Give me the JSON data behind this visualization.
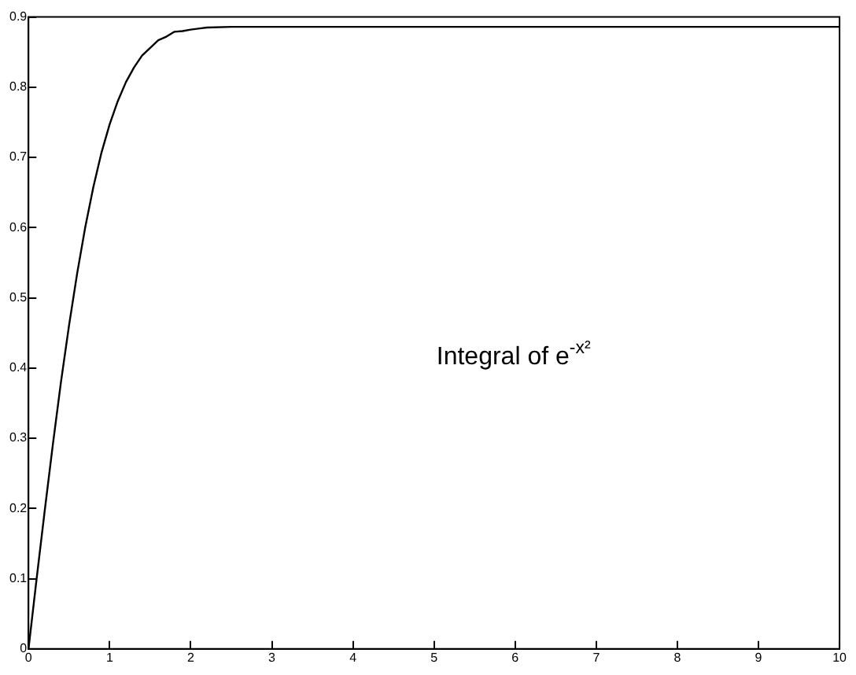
{
  "chart_data": {
    "type": "line",
    "x": [
      0,
      0.1,
      0.2,
      0.3,
      0.4,
      0.5,
      0.6,
      0.7,
      0.8,
      0.9,
      1.0,
      1.1,
      1.2,
      1.3,
      1.4,
      1.5,
      1.6,
      1.7,
      1.8,
      1.9,
      2.0,
      2.2,
      2.5,
      3,
      4,
      6,
      8,
      10
    ],
    "series": [
      {
        "color": "#000000",
        "values": [
          0,
          0.1,
          0.197,
          0.291,
          0.38,
          0.461,
          0.535,
          0.601,
          0.658,
          0.707,
          0.747,
          0.78,
          0.807,
          0.828,
          0.845,
          0.856,
          0.867,
          0.872,
          0.879,
          0.88,
          0.882,
          0.885,
          0.886,
          0.886,
          0.886,
          0.886,
          0.886,
          0.886
        ]
      }
    ],
    "xlim": [
      0,
      10
    ],
    "xticks": [
      0,
      1,
      2,
      3,
      4,
      5,
      6,
      7,
      8,
      9,
      10
    ],
    "ylim": [
      0,
      0.9
    ],
    "yticks": [
      0,
      0.1,
      0.2,
      0.3,
      0.4,
      0.5,
      0.6,
      0.7,
      0.8,
      0.9
    ],
    "grid": false,
    "legend": false,
    "marker": "none",
    "line_style": "solid",
    "annotations": [
      "Integral of e$^{-x²}$"
    ]
  }
}
